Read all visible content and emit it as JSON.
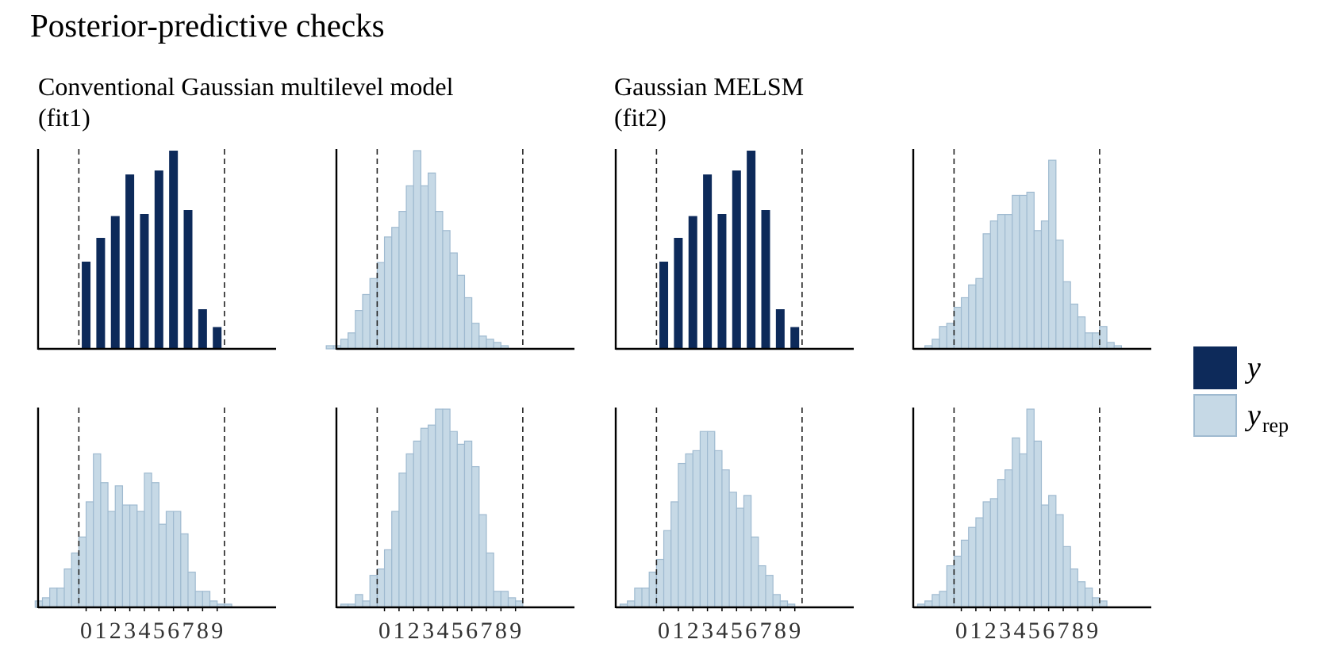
{
  "page_title": "Posterior-predictive checks",
  "colors": {
    "y": "#0d2a5a",
    "yrep_fill": "#c6d9e6",
    "yrep_border": "#9fbad0"
  },
  "legend": {
    "y_label": "y",
    "yrep_label_base": "y",
    "yrep_label_sub": "rep"
  },
  "groups": [
    {
      "title_line1": "Conventional Gaussian multilevel model",
      "title_line2": "(fit1)"
    },
    {
      "title_line1": "Gaussian MELSM",
      "title_line2": "(fit2)"
    }
  ],
  "chart_data": [
    {
      "type": "bar",
      "group": "fit1",
      "series": "y",
      "categories": [
        "0",
        "1",
        "2",
        "3",
        "4",
        "5",
        "6",
        "7",
        "8",
        "9"
      ],
      "values": [
        0.44,
        0.56,
        0.67,
        0.88,
        0.68,
        0.9,
        1.0,
        0.7,
        0.2,
        0.11
      ],
      "vlines": [
        -0.5,
        9.5
      ],
      "tick_labels": "0123456789"
    },
    {
      "type": "bar",
      "group": "fit1",
      "series": "yrep",
      "bin_width": 0.5,
      "bin_start": -4.0,
      "values": [
        0.01,
        0.01,
        0.03,
        0.05,
        0.12,
        0.17,
        0.22,
        0.27,
        0.35,
        0.38,
        0.43,
        0.51,
        0.62,
        0.51,
        0.55,
        0.43,
        0.37,
        0.3,
        0.23,
        0.16,
        0.08,
        0.04,
        0.03,
        0.02,
        0.01,
        0
      ],
      "vlines": [
        -0.5,
        9.5
      ],
      "tick_labels": "0123456789"
    },
    {
      "type": "bar",
      "group": "fit2",
      "series": "y",
      "categories": [
        "0",
        "1",
        "2",
        "3",
        "4",
        "5",
        "6",
        "7",
        "8",
        "9"
      ],
      "values": [
        0.44,
        0.56,
        0.67,
        0.88,
        0.68,
        0.9,
        1.0,
        0.7,
        0.2,
        0.11
      ],
      "vlines": [
        -0.5,
        9.5
      ],
      "tick_labels": "0123456789"
    },
    {
      "type": "bar",
      "group": "fit2",
      "series": "yrep",
      "bin_width": 0.5,
      "bin_start": -2.5,
      "values": [
        0.01,
        0.03,
        0.07,
        0.08,
        0.13,
        0.16,
        0.2,
        0.22,
        0.36,
        0.4,
        0.42,
        0.42,
        0.48,
        0.48,
        0.49,
        0.37,
        0.4,
        0.59,
        0.34,
        0.21,
        0.14,
        0.1,
        0.05,
        0.05,
        0.07,
        0.02,
        0.01
      ],
      "vlines": [
        -0.5,
        9.5
      ],
      "tick_labels": "0123456789"
    },
    {
      "type": "bar",
      "group": "fit1",
      "series": "yrep",
      "bin_width": 0.5,
      "bin_start": -3.5,
      "values": [
        0.02,
        0.03,
        0.06,
        0.06,
        0.12,
        0.17,
        0.22,
        0.33,
        0.48,
        0.39,
        0.3,
        0.38,
        0.32,
        0.32,
        0.3,
        0.42,
        0.39,
        0.26,
        0.3,
        0.3,
        0.23,
        0.11,
        0.05,
        0.05,
        0.02,
        0.01,
        0.01
      ],
      "vlines": [
        -0.5,
        9.5
      ],
      "tick_labels": "0123456789"
    },
    {
      "type": "bar",
      "group": "fit1",
      "series": "yrep",
      "bin_width": 0.5,
      "bin_start": -3.0,
      "values": [
        0.01,
        0.01,
        0.04,
        0.02,
        0.1,
        0.12,
        0.18,
        0.3,
        0.42,
        0.48,
        0.52,
        0.56,
        0.57,
        0.62,
        0.62,
        0.55,
        0.51,
        0.52,
        0.44,
        0.29,
        0.17,
        0.05,
        0.05,
        0.03,
        0.02
      ],
      "vlines": [
        -0.5,
        9.5
      ],
      "tick_labels": "0123456789"
    },
    {
      "type": "bar",
      "group": "fit2",
      "series": "yrep",
      "bin_width": 0.5,
      "bin_start": -3.0,
      "values": [
        0.01,
        0.02,
        0.06,
        0.06,
        0.11,
        0.15,
        0.24,
        0.33,
        0.45,
        0.48,
        0.49,
        0.55,
        0.55,
        0.49,
        0.43,
        0.36,
        0.31,
        0.35,
        0.22,
        0.13,
        0.1,
        0.04,
        0.02,
        0.01
      ],
      "vlines": [
        -0.5,
        9.5
      ],
      "tick_labels": "0123456789"
    },
    {
      "type": "bar",
      "group": "fit2",
      "series": "yrep",
      "bin_width": 0.5,
      "bin_start": -3.0,
      "values": [
        0.01,
        0.02,
        0.04,
        0.05,
        0.13,
        0.16,
        0.21,
        0.25,
        0.28,
        0.33,
        0.34,
        0.4,
        0.43,
        0.53,
        0.48,
        0.62,
        0.52,
        0.32,
        0.35,
        0.29,
        0.19,
        0.12,
        0.08,
        0.06,
        0.03,
        0.02
      ],
      "vlines": [
        -0.5,
        9.5
      ],
      "tick_labels": "0123456789"
    }
  ]
}
